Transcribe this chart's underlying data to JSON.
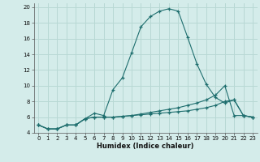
{
  "xlabel": "Humidex (Indice chaleur)",
  "background_color": "#d4ecea",
  "grid_color": "#b8d8d4",
  "line_color": "#1e6e6e",
  "xlim": [
    -0.5,
    23.5
  ],
  "ylim": [
    4,
    20.5
  ],
  "yticks": [
    4,
    6,
    8,
    10,
    12,
    14,
    16,
    18,
    20
  ],
  "xticks": [
    0,
    1,
    2,
    3,
    4,
    5,
    6,
    7,
    8,
    9,
    10,
    11,
    12,
    13,
    14,
    15,
    16,
    17,
    18,
    19,
    20,
    21,
    22,
    23
  ],
  "curve1_x": [
    0,
    1,
    2,
    3,
    4,
    5,
    6,
    7,
    8,
    9,
    10,
    11,
    12,
    13,
    14,
    15,
    16,
    17,
    18,
    19,
    20,
    21,
    22,
    23
  ],
  "curve1_y": [
    5.0,
    4.5,
    4.5,
    5.0,
    5.0,
    5.8,
    6.5,
    6.2,
    9.5,
    11.0,
    14.2,
    17.5,
    18.8,
    19.5,
    19.8,
    19.5,
    16.2,
    12.8,
    10.2,
    8.5,
    7.8,
    8.2,
    6.2,
    6.0
  ],
  "curve2_x": [
    0,
    1,
    2,
    3,
    4,
    5,
    6,
    7,
    8,
    9,
    10,
    11,
    12,
    13,
    14,
    15,
    16,
    17,
    18,
    19,
    20,
    21,
    22,
    23
  ],
  "curve2_y": [
    5.0,
    4.5,
    4.5,
    5.0,
    5.0,
    5.8,
    6.0,
    6.0,
    6.0,
    6.1,
    6.2,
    6.3,
    6.4,
    6.5,
    6.6,
    6.7,
    6.8,
    7.0,
    7.2,
    7.5,
    8.0,
    8.2,
    6.2,
    6.0
  ],
  "curve3_x": [
    0,
    1,
    2,
    3,
    4,
    5,
    6,
    7,
    8,
    9,
    10,
    11,
    12,
    13,
    14,
    15,
    16,
    17,
    18,
    19,
    20,
    21,
    22,
    23
  ],
  "curve3_y": [
    5.0,
    4.5,
    4.5,
    5.0,
    5.0,
    5.8,
    6.0,
    6.0,
    6.0,
    6.1,
    6.2,
    6.4,
    6.6,
    6.8,
    7.0,
    7.2,
    7.5,
    7.8,
    8.2,
    8.8,
    10.0,
    6.2,
    6.2,
    6.0
  ]
}
